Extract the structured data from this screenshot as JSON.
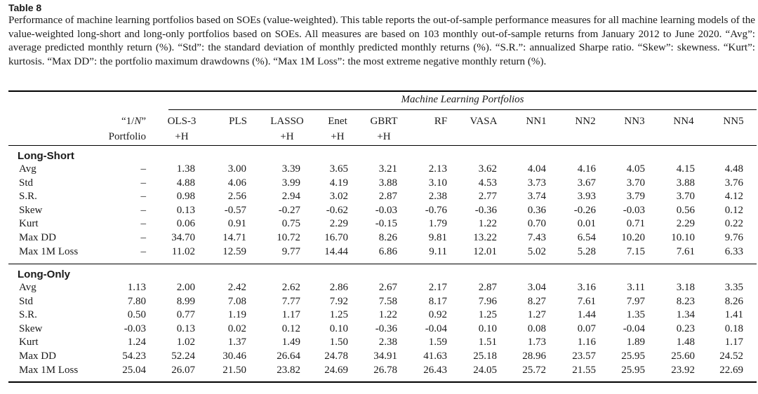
{
  "table_label": "Table 8",
  "caption": "Performance of machine learning portfolios based on SOEs (value-weighted). This table reports the out-of-sample performance measures for all machine learning models of the value-weighted long-short and long-only portfolios based on SOEs. All measures are based on 103 monthly out-of-sample returns from January 2012 to June 2020. “Avg”: average predicted monthly return (%). “Std”: the standard deviation of monthly predicted monthly returns (%). “S.R.”: annualized Sharpe ratio. “Skew”: skewness. “Kurt”: kurtosis. “Max DD”: the portfolio maximum drawdowns (%). “Max 1M Loss”: the most extreme negative monthly return (%).",
  "group_header": "Machine Learning Portfolios",
  "columns": [
    {
      "line1": "“1/N”",
      "line2": "Portfolio"
    },
    {
      "line1": "OLS-3",
      "line2": "+H"
    },
    {
      "line1": "PLS",
      "line2": ""
    },
    {
      "line1": "LASSO",
      "line2": "+H"
    },
    {
      "line1": "Enet",
      "line2": "+H"
    },
    {
      "line1": "GBRT",
      "line2": "+H"
    },
    {
      "line1": "RF",
      "line2": ""
    },
    {
      "line1": "VASA",
      "line2": ""
    },
    {
      "line1": "NN1",
      "line2": ""
    },
    {
      "line1": "NN2",
      "line2": ""
    },
    {
      "line1": "NN3",
      "line2": ""
    },
    {
      "line1": "NN4",
      "line2": ""
    },
    {
      "line1": "NN5",
      "line2": ""
    }
  ],
  "sections": [
    {
      "title": "Long-Short",
      "rows": [
        {
          "label": "Avg",
          "values": [
            "–",
            "1.38",
            "3.00",
            "3.39",
            "3.65",
            "3.21",
            "2.13",
            "3.62",
            "4.04",
            "4.16",
            "4.05",
            "4.15",
            "4.48"
          ]
        },
        {
          "label": "Std",
          "values": [
            "–",
            "4.88",
            "4.06",
            "3.99",
            "4.19",
            "3.88",
            "3.10",
            "4.53",
            "3.73",
            "3.67",
            "3.70",
            "3.88",
            "3.76"
          ]
        },
        {
          "label": "S.R.",
          "values": [
            "–",
            "0.98",
            "2.56",
            "2.94",
            "3.02",
            "2.87",
            "2.38",
            "2.77",
            "3.74",
            "3.93",
            "3.79",
            "3.70",
            "4.12"
          ]
        },
        {
          "label": "Skew",
          "values": [
            "–",
            "0.13",
            "-0.57",
            "-0.27",
            "-0.62",
            "-0.03",
            "-0.76",
            "-0.36",
            "0.36",
            "-0.26",
            "-0.03",
            "0.56",
            "0.12"
          ]
        },
        {
          "label": "Kurt",
          "values": [
            "–",
            "0.06",
            "0.91",
            "0.75",
            "2.29",
            "-0.15",
            "1.79",
            "1.22",
            "0.70",
            "0.01",
            "0.71",
            "2.29",
            "0.22"
          ]
        },
        {
          "label": "Max DD",
          "values": [
            "–",
            "34.70",
            "14.71",
            "10.72",
            "16.70",
            "8.26",
            "9.81",
            "13.22",
            "7.43",
            "6.54",
            "10.20",
            "10.10",
            "9.76"
          ]
        },
        {
          "label": "Max 1M Loss",
          "values": [
            "–",
            "11.02",
            "12.59",
            "9.77",
            "14.44",
            "6.86",
            "9.11",
            "12.01",
            "5.02",
            "5.28",
            "7.15",
            "7.61",
            "6.33"
          ]
        }
      ]
    },
    {
      "title": "Long-Only",
      "rows": [
        {
          "label": "Avg",
          "values": [
            "1.13",
            "2.00",
            "2.42",
            "2.62",
            "2.86",
            "2.67",
            "2.17",
            "2.87",
            "3.04",
            "3.16",
            "3.11",
            "3.18",
            "3.35"
          ]
        },
        {
          "label": "Std",
          "values": [
            "7.80",
            "8.99",
            "7.08",
            "7.77",
            "7.92",
            "7.58",
            "8.17",
            "7.96",
            "8.27",
            "7.61",
            "7.97",
            "8.23",
            "8.26"
          ]
        },
        {
          "label": "S.R.",
          "values": [
            "0.50",
            "0.77",
            "1.19",
            "1.17",
            "1.25",
            "1.22",
            "0.92",
            "1.25",
            "1.27",
            "1.44",
            "1.35",
            "1.34",
            "1.41"
          ]
        },
        {
          "label": "Skew",
          "values": [
            "-0.03",
            "0.13",
            "0.02",
            "0.12",
            "0.10",
            "-0.36",
            "-0.04",
            "0.10",
            "0.08",
            "0.07",
            "-0.04",
            "0.23",
            "0.18"
          ]
        },
        {
          "label": "Kurt",
          "values": [
            "1.24",
            "1.02",
            "1.37",
            "1.49",
            "1.50",
            "2.38",
            "1.59",
            "1.51",
            "1.73",
            "1.16",
            "1.89",
            "1.48",
            "1.17"
          ]
        },
        {
          "label": "Max DD",
          "values": [
            "54.23",
            "52.24",
            "30.46",
            "26.64",
            "24.78",
            "34.91",
            "41.63",
            "25.18",
            "28.96",
            "23.57",
            "25.95",
            "25.60",
            "24.52"
          ]
        },
        {
          "label": "Max 1M Loss",
          "values": [
            "25.04",
            "26.07",
            "21.50",
            "23.82",
            "24.69",
            "26.78",
            "26.43",
            "24.05",
            "25.72",
            "21.55",
            "25.95",
            "23.92",
            "22.69"
          ]
        }
      ]
    }
  ]
}
